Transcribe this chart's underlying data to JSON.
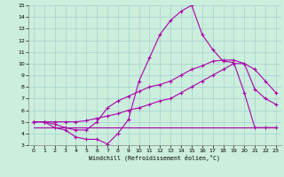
{
  "xlabel": "Windchill (Refroidissement éolien,°C)",
  "bg_color": "#cceedd",
  "line_color": "#aa00aa",
  "xlim": [
    -0.5,
    23.5
  ],
  "ylim": [
    3,
    15
  ],
  "yticks": [
    3,
    4,
    5,
    6,
    7,
    8,
    9,
    10,
    11,
    12,
    13,
    14,
    15
  ],
  "xticks": [
    0,
    1,
    2,
    3,
    4,
    5,
    6,
    7,
    8,
    9,
    10,
    11,
    12,
    13,
    14,
    15,
    16,
    17,
    18,
    19,
    20,
    21,
    22,
    23
  ],
  "line1_x": [
    0,
    1,
    2,
    3,
    4,
    5,
    6,
    7,
    8,
    9,
    10,
    11,
    12,
    13,
    14,
    15,
    16,
    17,
    18,
    19,
    20,
    21,
    22,
    23
  ],
  "line1_y": [
    5,
    5,
    4.5,
    4.3,
    3.7,
    3.5,
    3.5,
    3.1,
    4.0,
    5.2,
    8.5,
    10.5,
    12.5,
    13.7,
    14.5,
    15.0,
    12.5,
    11.2,
    10.2,
    10.1,
    7.5,
    4.5,
    4.5,
    4.5
  ],
  "line2_x": [
    0,
    1,
    2,
    3,
    4,
    5,
    6,
    7,
    8,
    9,
    10,
    11,
    12,
    13,
    14,
    15,
    16,
    17,
    18,
    19,
    20,
    21,
    22,
    23
  ],
  "line2_y": [
    5.0,
    5.0,
    5.0,
    5.0,
    5.0,
    5.1,
    5.3,
    5.5,
    5.7,
    6.0,
    6.2,
    6.5,
    6.8,
    7.0,
    7.5,
    8.0,
    8.5,
    9.0,
    9.5,
    10.0,
    10.0,
    9.5,
    8.5,
    7.5
  ],
  "line3_x": [
    0,
    10,
    21,
    22,
    23
  ],
  "line3_y": [
    4.5,
    4.5,
    4.5,
    4.5,
    4.5
  ],
  "line4_x": [
    0,
    1,
    2,
    3,
    4,
    5,
    6,
    7,
    8,
    9,
    10,
    11,
    12,
    13,
    14,
    15,
    16,
    17,
    18,
    19,
    20,
    21,
    22,
    23
  ],
  "line4_y": [
    5.0,
    5.0,
    4.8,
    4.5,
    4.3,
    4.3,
    5.0,
    6.2,
    6.8,
    7.2,
    7.6,
    8.0,
    8.2,
    8.5,
    9.0,
    9.5,
    9.8,
    10.2,
    10.3,
    10.3,
    10.0,
    7.8,
    7.0,
    6.5
  ]
}
